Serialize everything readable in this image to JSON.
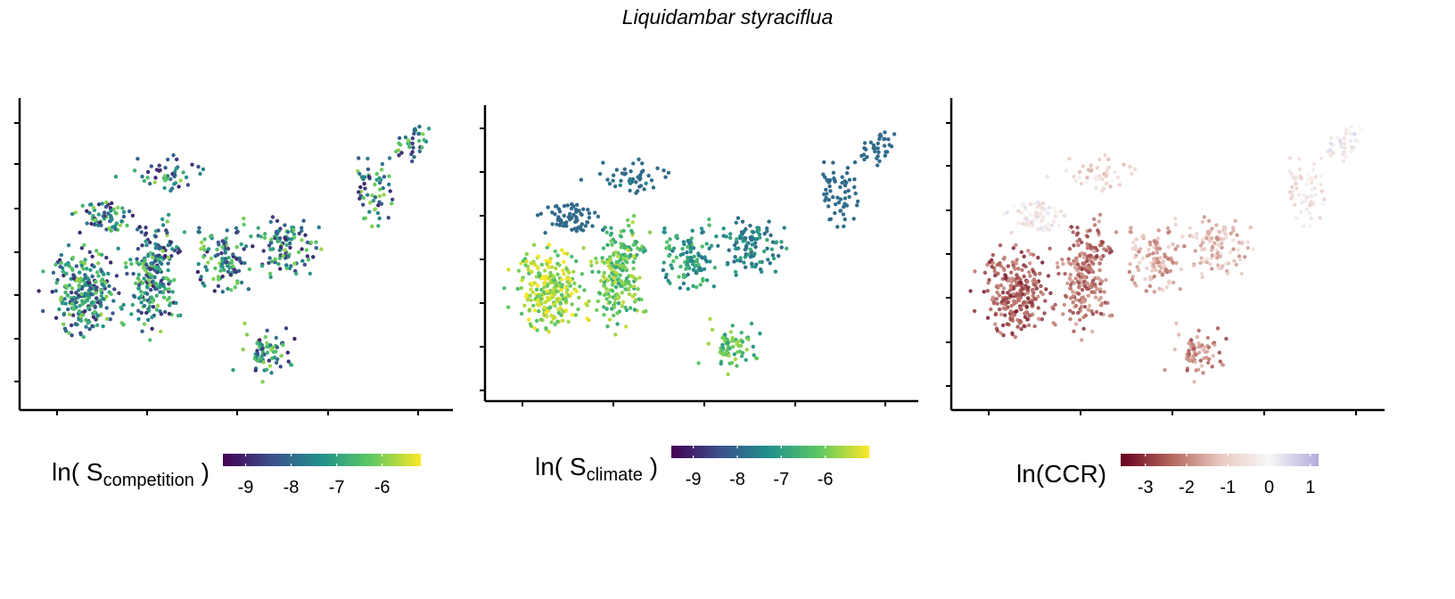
{
  "title": "Liquidambar styraciflua",
  "chart_data": [
    {
      "type": "scatter",
      "panel": "competition",
      "legend": {
        "title_main": "ln( S",
        "title_sub": "competition",
        "title_end": " )",
        "ticks": [
          -9,
          -8,
          -7,
          -6
        ],
        "range": [
          -9.5,
          -5.15
        ],
        "colormap": "viridis",
        "colors": [
          "#440154",
          "#3b528b",
          "#21918c",
          "#5ec962",
          "#fde725"
        ]
      },
      "xlabel": "",
      "ylabel": "",
      "tick_labels_shown": false,
      "grid": false,
      "points_description_value_mean": -7.3
    },
    {
      "type": "scatter",
      "panel": "climate",
      "legend": {
        "title_main": "ln( S",
        "title_sub": "climate",
        "title_end": " )",
        "ticks": [
          -9,
          -8,
          -7,
          -6
        ],
        "range": [
          -9.5,
          -5.0
        ],
        "colormap": "viridis",
        "colors": [
          "#440154",
          "#3b528b",
          "#21918c",
          "#5ec962",
          "#fde725"
        ]
      },
      "xlabel": "",
      "ylabel": "",
      "tick_labels_shown": false,
      "grid": false
    },
    {
      "type": "scatter",
      "panel": "ccr",
      "legend": {
        "title_main": "ln(CCR)",
        "title_sub": "",
        "title_end": "",
        "ticks": [
          -3,
          -2,
          -1,
          0,
          1
        ],
        "range": [
          -3.6,
          1.2
        ],
        "colormap": "diverging red-white-blue",
        "colors": [
          "#67001f",
          "#b2645a",
          "#e8c7bf",
          "#f7f7f7",
          "#b3acdc"
        ]
      },
      "xlabel": "",
      "ylabel": "",
      "tick_labels_shown": false,
      "grid": false
    }
  ]
}
